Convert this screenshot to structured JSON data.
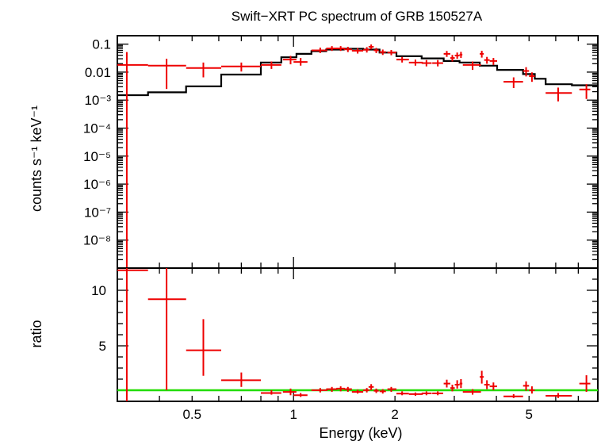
{
  "chart_data": [
    {
      "panel": "spectrum",
      "type": "scatter",
      "title": "Swift−XRT PC spectrum of GRB 150527A",
      "ylabel": "counts s⁻¹ keV⁻¹",
      "yscale": "log",
      "xscale": "log",
      "ylim": [
        1e-09,
        0.2
      ],
      "y_ticklabels": [
        {
          "value": 0.1,
          "label": "0.1"
        },
        {
          "value": 0.01,
          "label": "0.01"
        },
        {
          "value": 0.001,
          "label": "10⁻³"
        },
        {
          "value": 0.0001,
          "label": "10⁻⁴"
        },
        {
          "value": 1e-05,
          "label": "10⁻⁵"
        },
        {
          "value": 1e-06,
          "label": "10⁻⁶"
        },
        {
          "value": 1e-07,
          "label": "10⁻⁷"
        },
        {
          "value": 1e-08,
          "label": "10⁻⁸"
        }
      ],
      "series": [
        {
          "kind": "data",
          "color": "#ee0000",
          "points": [
            {
              "x": 0.32,
              "xlo": 0.3,
              "xhi": 0.37,
              "y": 0.018,
              "ylo": 1e-09,
              "yhi": 0.052
            },
            {
              "x": 0.42,
              "xlo": 0.37,
              "xhi": 0.48,
              "y": 0.017,
              "ylo": 0.0025,
              "yhi": 0.03
            },
            {
              "x": 0.54,
              "xlo": 0.48,
              "xhi": 0.61,
              "y": 0.014,
              "ylo": 0.0065,
              "yhi": 0.022
            },
            {
              "x": 0.7,
              "xlo": 0.61,
              "xhi": 0.8,
              "y": 0.016,
              "ylo": 0.0105,
              "yhi": 0.022
            },
            {
              "x": 0.86,
              "xlo": 0.8,
              "xhi": 0.92,
              "y": 0.018,
              "ylo": 0.013,
              "yhi": 0.024
            },
            {
              "x": 0.98,
              "xlo": 0.93,
              "xhi": 1.02,
              "y": 0.028,
              "ylo": 0.019,
              "yhi": 0.038
            },
            {
              "x": 1.05,
              "xlo": 1.0,
              "xhi": 1.1,
              "y": 0.023,
              "ylo": 0.017,
              "yhi": 0.032
            },
            {
              "x": 1.2,
              "xlo": 1.13,
              "xhi": 1.26,
              "y": 0.06,
              "ylo": 0.048,
              "yhi": 0.075
            },
            {
              "x": 1.3,
              "xlo": 1.25,
              "xhi": 1.35,
              "y": 0.07,
              "ylo": 0.057,
              "yhi": 0.085
            },
            {
              "x": 1.38,
              "xlo": 1.34,
              "xhi": 1.42,
              "y": 0.07,
              "ylo": 0.057,
              "yhi": 0.085
            },
            {
              "x": 1.45,
              "xlo": 1.41,
              "xhi": 1.49,
              "y": 0.065,
              "ylo": 0.052,
              "yhi": 0.08
            },
            {
              "x": 1.55,
              "xlo": 1.49,
              "xhi": 1.61,
              "y": 0.058,
              "ylo": 0.046,
              "yhi": 0.072
            },
            {
              "x": 1.65,
              "xlo": 1.61,
              "xhi": 1.68,
              "y": 0.063,
              "ylo": 0.05,
              "yhi": 0.078
            },
            {
              "x": 1.7,
              "xlo": 1.67,
              "xhi": 1.73,
              "y": 0.08,
              "ylo": 0.065,
              "yhi": 0.097
            },
            {
              "x": 1.76,
              "xlo": 1.73,
              "xhi": 1.79,
              "y": 0.06,
              "ylo": 0.048,
              "yhi": 0.073
            },
            {
              "x": 1.84,
              "xlo": 1.8,
              "xhi": 1.88,
              "y": 0.052,
              "ylo": 0.041,
              "yhi": 0.064
            },
            {
              "x": 1.95,
              "xlo": 1.9,
              "xhi": 2.02,
              "y": 0.05,
              "ylo": 0.04,
              "yhi": 0.062
            },
            {
              "x": 2.1,
              "xlo": 2.02,
              "xhi": 2.2,
              "y": 0.028,
              "ylo": 0.022,
              "yhi": 0.035
            },
            {
              "x": 2.3,
              "xlo": 2.2,
              "xhi": 2.42,
              "y": 0.022,
              "ylo": 0.017,
              "yhi": 0.028
            },
            {
              "x": 2.48,
              "xlo": 2.4,
              "xhi": 2.57,
              "y": 0.021,
              "ylo": 0.016,
              "yhi": 0.027
            },
            {
              "x": 2.68,
              "xlo": 2.58,
              "xhi": 2.78,
              "y": 0.021,
              "ylo": 0.016,
              "yhi": 0.027
            },
            {
              "x": 2.85,
              "xlo": 2.79,
              "xhi": 2.92,
              "y": 0.045,
              "ylo": 0.035,
              "yhi": 0.057
            },
            {
              "x": 2.96,
              "xlo": 2.92,
              "xhi": 3.01,
              "y": 0.032,
              "ylo": 0.024,
              "yhi": 0.041
            },
            {
              "x": 3.06,
              "xlo": 3.01,
              "xhi": 3.11,
              "y": 0.039,
              "ylo": 0.03,
              "yhi": 0.05
            },
            {
              "x": 3.14,
              "xlo": 3.11,
              "xhi": 3.17,
              "y": 0.042,
              "ylo": 0.032,
              "yhi": 0.053
            },
            {
              "x": 3.4,
              "xlo": 3.18,
              "xhi": 3.6,
              "y": 0.018,
              "ylo": 0.012,
              "yhi": 0.024
            },
            {
              "x": 3.62,
              "xlo": 3.57,
              "xhi": 3.67,
              "y": 0.045,
              "ylo": 0.033,
              "yhi": 0.058
            },
            {
              "x": 3.75,
              "xlo": 3.68,
              "xhi": 3.82,
              "y": 0.027,
              "ylo": 0.02,
              "yhi": 0.035
            },
            {
              "x": 3.92,
              "xlo": 3.82,
              "xhi": 4.02,
              "y": 0.025,
              "ylo": 0.018,
              "yhi": 0.032
            },
            {
              "x": 4.5,
              "xlo": 4.2,
              "xhi": 4.8,
              "y": 0.0045,
              "ylo": 0.0027,
              "yhi": 0.0065
            },
            {
              "x": 4.9,
              "xlo": 4.8,
              "xhi": 5.0,
              "y": 0.011,
              "ylo": 0.007,
              "yhi": 0.015
            },
            {
              "x": 5.1,
              "xlo": 5.0,
              "xhi": 5.2,
              "y": 0.0072,
              "ylo": 0.0045,
              "yhi": 0.0098
            },
            {
              "x": 6.1,
              "xlo": 5.6,
              "xhi": 6.7,
              "y": 0.0018,
              "ylo": 0.0009,
              "yhi": 0.0028
            },
            {
              "x": 7.4,
              "xlo": 7.05,
              "xhi": 7.6,
              "y": 0.0024,
              "ylo": 0.0011,
              "yhi": 0.0037
            }
          ]
        },
        {
          "kind": "model",
          "color": "#000000",
          "steps": [
            {
              "x0": 0.3,
              "x1": 0.37,
              "y": 0.0015
            },
            {
              "x0": 0.37,
              "x1": 0.48,
              "y": 0.0019
            },
            {
              "x0": 0.48,
              "x1": 0.61,
              "y": 0.0031
            },
            {
              "x0": 0.61,
              "x1": 0.8,
              "y": 0.0082
            },
            {
              "x0": 0.8,
              "x1": 0.92,
              "y": 0.022
            },
            {
              "x0": 0.92,
              "x1": 1.02,
              "y": 0.034
            },
            {
              "x0": 1.02,
              "x1": 1.13,
              "y": 0.045
            },
            {
              "x0": 1.13,
              "x1": 1.25,
              "y": 0.056
            },
            {
              "x0": 1.25,
              "x1": 1.41,
              "y": 0.064
            },
            {
              "x0": 1.41,
              "x1": 1.61,
              "y": 0.068
            },
            {
              "x0": 1.61,
              "x1": 1.8,
              "y": 0.064
            },
            {
              "x0": 1.8,
              "x1": 2.02,
              "y": 0.05
            },
            {
              "x0": 2.02,
              "x1": 2.4,
              "y": 0.037
            },
            {
              "x0": 2.4,
              "x1": 2.79,
              "y": 0.031
            },
            {
              "x0": 2.79,
              "x1": 3.11,
              "y": 0.025
            },
            {
              "x0": 3.11,
              "x1": 3.57,
              "y": 0.022
            },
            {
              "x0": 3.57,
              "x1": 4.02,
              "y": 0.017
            },
            {
              "x0": 4.02,
              "x1": 4.8,
              "y": 0.012
            },
            {
              "x0": 4.8,
              "x1": 5.2,
              "y": 0.0085
            },
            {
              "x0": 5.2,
              "x1": 5.6,
              "y": 0.0058
            },
            {
              "x0": 5.6,
              "x1": 6.7,
              "y": 0.0037
            },
            {
              "x0": 6.7,
              "x1": 8.0,
              "y": 0.0034
            }
          ]
        }
      ]
    },
    {
      "panel": "ratio",
      "type": "scatter",
      "xlabel": "Energy (keV)",
      "ylabel": "ratio",
      "xscale": "log",
      "xlim": [
        0.3,
        8.0
      ],
      "ylim": [
        0,
        12
      ],
      "x_ticklabels": [
        {
          "value": 0.5,
          "label": "0.5"
        },
        {
          "value": 1,
          "label": "1"
        },
        {
          "value": 2,
          "label": "2"
        },
        {
          "value": 5,
          "label": "5"
        }
      ],
      "y_ticklabels": [
        {
          "value": 5,
          "label": "5"
        },
        {
          "value": 10,
          "label": "10"
        }
      ],
      "reference_line": {
        "y": 1,
        "color": "#22dd00"
      },
      "series": [
        {
          "kind": "ratio",
          "color": "#ee0000",
          "points": [
            {
              "x": 0.32,
              "xlo": 0.3,
              "xhi": 0.37,
              "y": 11.8,
              "ylo": 0,
              "yhi": 12
            },
            {
              "x": 0.42,
              "xlo": 0.37,
              "xhi": 0.48,
              "y": 9.2,
              "ylo": 1.0,
              "yhi": 12
            },
            {
              "x": 0.54,
              "xlo": 0.48,
              "xhi": 0.61,
              "y": 4.6,
              "ylo": 2.3,
              "yhi": 7.4
            },
            {
              "x": 0.7,
              "xlo": 0.61,
              "xhi": 0.8,
              "y": 1.9,
              "ylo": 1.3,
              "yhi": 2.6
            },
            {
              "x": 0.86,
              "xlo": 0.8,
              "xhi": 0.92,
              "y": 0.75,
              "ylo": 0.6,
              "yhi": 1.0
            },
            {
              "x": 0.98,
              "xlo": 0.93,
              "xhi": 1.02,
              "y": 0.85,
              "ylo": 0.55,
              "yhi": 1.15
            },
            {
              "x": 1.05,
              "xlo": 1.0,
              "xhi": 1.1,
              "y": 0.55,
              "ylo": 0.4,
              "yhi": 0.75
            },
            {
              "x": 1.2,
              "xlo": 1.13,
              "xhi": 1.26,
              "y": 1.0,
              "ylo": 0.8,
              "yhi": 1.2
            },
            {
              "x": 1.3,
              "xlo": 1.25,
              "xhi": 1.35,
              "y": 1.1,
              "ylo": 0.85,
              "yhi": 1.3
            },
            {
              "x": 1.38,
              "xlo": 1.34,
              "xhi": 1.42,
              "y": 1.15,
              "ylo": 0.9,
              "yhi": 1.35
            },
            {
              "x": 1.45,
              "xlo": 1.41,
              "xhi": 1.49,
              "y": 1.1,
              "ylo": 0.85,
              "yhi": 1.3
            },
            {
              "x": 1.55,
              "xlo": 1.49,
              "xhi": 1.61,
              "y": 0.85,
              "ylo": 0.7,
              "yhi": 1.05
            },
            {
              "x": 1.65,
              "xlo": 1.61,
              "xhi": 1.68,
              "y": 1.0,
              "ylo": 0.8,
              "yhi": 1.2
            },
            {
              "x": 1.7,
              "xlo": 1.67,
              "xhi": 1.73,
              "y": 1.3,
              "ylo": 1.0,
              "yhi": 1.55
            },
            {
              "x": 1.76,
              "xlo": 1.73,
              "xhi": 1.79,
              "y": 0.95,
              "ylo": 0.75,
              "yhi": 1.15
            },
            {
              "x": 1.84,
              "xlo": 1.8,
              "xhi": 1.88,
              "y": 0.9,
              "ylo": 0.7,
              "yhi": 1.1
            },
            {
              "x": 1.95,
              "xlo": 1.9,
              "xhi": 2.02,
              "y": 1.1,
              "ylo": 0.85,
              "yhi": 1.3
            },
            {
              "x": 2.1,
              "xlo": 2.02,
              "xhi": 2.2,
              "y": 0.7,
              "ylo": 0.55,
              "yhi": 0.9
            },
            {
              "x": 2.3,
              "xlo": 2.2,
              "xhi": 2.42,
              "y": 0.65,
              "ylo": 0.5,
              "yhi": 0.8
            },
            {
              "x": 2.48,
              "xlo": 2.4,
              "xhi": 2.57,
              "y": 0.72,
              "ylo": 0.55,
              "yhi": 0.9
            },
            {
              "x": 2.68,
              "xlo": 2.58,
              "xhi": 2.78,
              "y": 0.72,
              "ylo": 0.55,
              "yhi": 0.9
            },
            {
              "x": 2.85,
              "xlo": 2.79,
              "xhi": 2.92,
              "y": 1.6,
              "ylo": 1.25,
              "yhi": 1.95
            },
            {
              "x": 2.96,
              "xlo": 2.92,
              "xhi": 3.01,
              "y": 1.2,
              "ylo": 0.9,
              "yhi": 1.5
            },
            {
              "x": 3.06,
              "xlo": 3.01,
              "xhi": 3.11,
              "y": 1.5,
              "ylo": 1.15,
              "yhi": 1.9
            },
            {
              "x": 3.14,
              "xlo": 3.11,
              "xhi": 3.17,
              "y": 1.6,
              "ylo": 1.2,
              "yhi": 2.0
            },
            {
              "x": 3.4,
              "xlo": 3.18,
              "xhi": 3.6,
              "y": 0.85,
              "ylo": 0.6,
              "yhi": 1.1
            },
            {
              "x": 3.62,
              "xlo": 3.57,
              "xhi": 3.67,
              "y": 2.2,
              "ylo": 1.6,
              "yhi": 2.75
            },
            {
              "x": 3.75,
              "xlo": 3.68,
              "xhi": 3.82,
              "y": 1.5,
              "ylo": 1.1,
              "yhi": 1.9
            },
            {
              "x": 3.92,
              "xlo": 3.82,
              "xhi": 4.02,
              "y": 1.35,
              "ylo": 1.0,
              "yhi": 1.7
            },
            {
              "x": 4.5,
              "xlo": 4.2,
              "xhi": 4.8,
              "y": 0.45,
              "ylo": 0.3,
              "yhi": 0.65
            },
            {
              "x": 4.9,
              "xlo": 4.8,
              "xhi": 5.0,
              "y": 1.4,
              "ylo": 0.95,
              "yhi": 1.8
            },
            {
              "x": 5.1,
              "xlo": 5.0,
              "xhi": 5.2,
              "y": 1.0,
              "ylo": 0.7,
              "yhi": 1.35
            },
            {
              "x": 6.1,
              "xlo": 5.6,
              "xhi": 6.7,
              "y": 0.5,
              "ylo": 0.3,
              "yhi": 0.75
            },
            {
              "x": 7.4,
              "xlo": 7.05,
              "xhi": 7.6,
              "y": 1.6,
              "ylo": 0.85,
              "yhi": 2.35
            }
          ]
        }
      ]
    }
  ]
}
